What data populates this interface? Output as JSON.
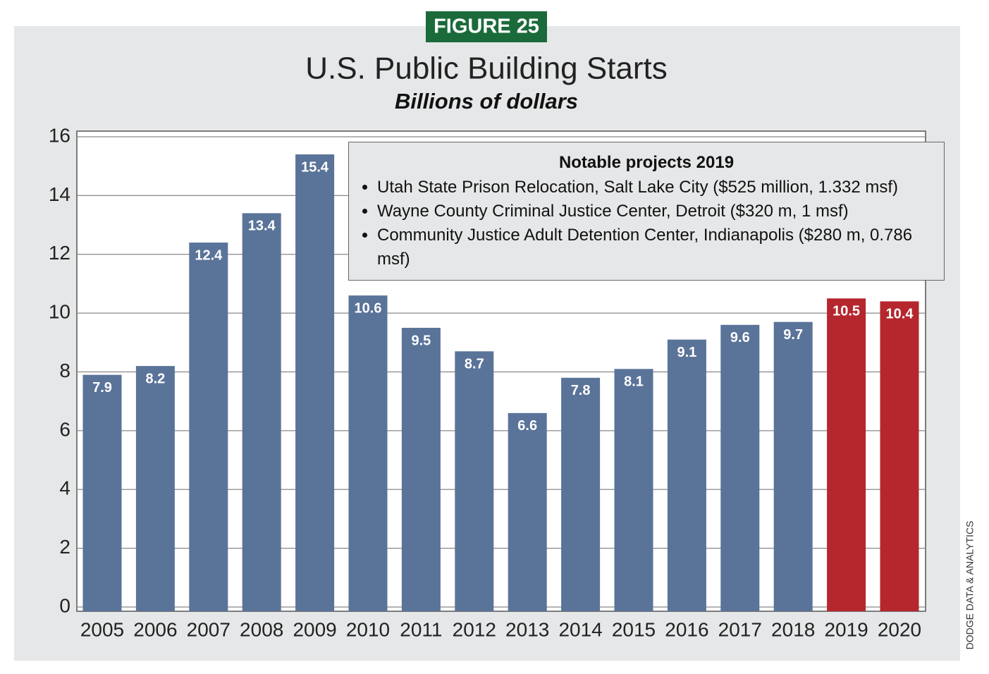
{
  "chart_data": {
    "type": "bar",
    "badge": "FIGURE 25",
    "title": "U.S. Public Building Starts",
    "subtitle": "Billions of dollars",
    "categories": [
      "2005",
      "2006",
      "2007",
      "2008",
      "2009",
      "2010",
      "2011",
      "2012",
      "2013",
      "2014",
      "2015",
      "2016",
      "2017",
      "2018",
      "2019",
      "2020"
    ],
    "values": [
      7.9,
      8.2,
      12.4,
      13.4,
      15.4,
      10.6,
      9.5,
      8.7,
      6.6,
      7.8,
      8.1,
      9.1,
      9.6,
      9.7,
      10.5,
      10.4
    ],
    "colors": [
      "#5a7399",
      "#5a7399",
      "#5a7399",
      "#5a7399",
      "#5a7399",
      "#5a7399",
      "#5a7399",
      "#5a7399",
      "#5a7399",
      "#5a7399",
      "#5a7399",
      "#5a7399",
      "#5a7399",
      "#5a7399",
      "#b5272d",
      "#b5272d"
    ],
    "ylim": [
      0,
      16
    ],
    "yticks": [
      0,
      2,
      4,
      6,
      8,
      10,
      12,
      14,
      16
    ],
    "grid": true,
    "annotation": {
      "title": "Notable projects 2019",
      "items": [
        "Utah State Prison Relocation, Salt Lake City ($525 million, 1.332 msf)",
        "Wayne County Criminal Justice Center, Detroit ($320 m, 1 msf)",
        "Community Justice Adult Detention Center, Indianapolis ($280 m, 0.786 msf)"
      ]
    },
    "source": "DODGE DATA & ANALYTICS"
  }
}
